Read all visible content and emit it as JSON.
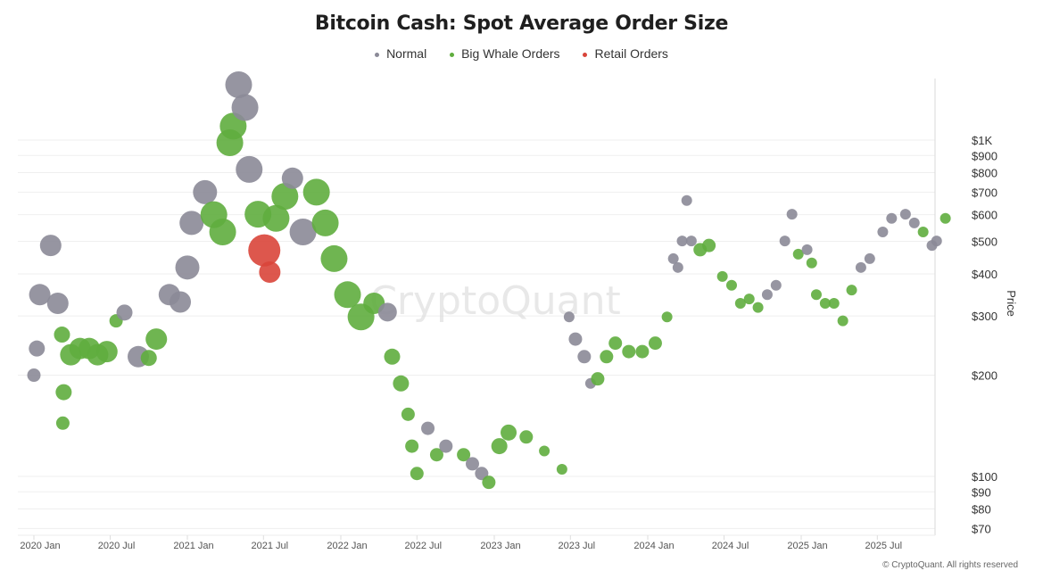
{
  "chart_data": {
    "type": "scatter",
    "title": "Bitcoin Cash: Spot Average Order Size",
    "legend_position": "top",
    "legend": [
      {
        "key": "normal",
        "label": "Normal",
        "color": "#8b8a97"
      },
      {
        "key": "whale",
        "label": "Big Whale Orders",
        "color": "#5fad3e"
      },
      {
        "key": "retail",
        "label": "Retail Orders",
        "color": "#d9453a"
      }
    ],
    "xlabel": "",
    "ylabel": "Price",
    "y_axis_side": "right",
    "y_scale": "log",
    "ylim": [
      70,
      1550
    ],
    "xlim": [
      "2019-12-20",
      "2025-12-31"
    ],
    "grid": "horizontal",
    "x_ticks": [
      {
        "date": "2020-01-01",
        "label": "2020 Jan"
      },
      {
        "date": "2020-07-01",
        "label": "2020 Jul"
      },
      {
        "date": "2021-01-01",
        "label": "2021 Jan"
      },
      {
        "date": "2021-07-01",
        "label": "2021 Jul"
      },
      {
        "date": "2022-01-01",
        "label": "2022 Jan"
      },
      {
        "date": "2022-07-01",
        "label": "2022 Jul"
      },
      {
        "date": "2023-01-01",
        "label": "2023 Jan"
      },
      {
        "date": "2023-07-01",
        "label": "2023 Jul"
      },
      {
        "date": "2024-01-01",
        "label": "2024 Jan"
      },
      {
        "date": "2024-07-01",
        "label": "2024 Jul"
      },
      {
        "date": "2025-01-01",
        "label": "2025 Jan"
      },
      {
        "date": "2025-07-01",
        "label": "2025 Jul"
      }
    ],
    "y_ticks": [
      {
        "value": 1000,
        "label": "$1K"
      },
      {
        "value": 900,
        "label": "$900"
      },
      {
        "value": 800,
        "label": "$800"
      },
      {
        "value": 700,
        "label": "$700"
      },
      {
        "value": 600,
        "label": "$600"
      },
      {
        "value": 500,
        "label": "$500"
      },
      {
        "value": 400,
        "label": "$400"
      },
      {
        "value": 300,
        "label": "$300"
      },
      {
        "value": 200,
        "label": "$200"
      },
      {
        "value": 100,
        "label": "$100"
      },
      {
        "value": 90,
        "label": "$90"
      },
      {
        "value": 80,
        "label": "$80"
      },
      {
        "value": 70,
        "label": "$70"
      }
    ],
    "points": [
      [
        "2020-01-01",
        200,
        "normal",
        2.5
      ],
      [
        "2020-01-08",
        240,
        "normal",
        3
      ],
      [
        "2020-01-15",
        347,
        "normal",
        4
      ],
      [
        "2020-02-10",
        486,
        "normal",
        4
      ],
      [
        "2020-02-27",
        327,
        "normal",
        4
      ],
      [
        "2020-03-08",
        264,
        "whale",
        3
      ],
      [
        "2020-03-12",
        178,
        "whale",
        3
      ],
      [
        "2020-03-10",
        144,
        "whale",
        2.5
      ],
      [
        "2020-03-29",
        230,
        "whale",
        4
      ],
      [
        "2020-04-20",
        240,
        "whale",
        4
      ],
      [
        "2020-05-12",
        240,
        "whale",
        4
      ],
      [
        "2020-06-01",
        230,
        "whale",
        4
      ],
      [
        "2020-06-23",
        235,
        "whale",
        4
      ],
      [
        "2020-07-15",
        290,
        "whale",
        2.5
      ],
      [
        "2020-08-04",
        307,
        "normal",
        3
      ],
      [
        "2020-09-06",
        227,
        "normal",
        4
      ],
      [
        "2020-10-01",
        225,
        "whale",
        3
      ],
      [
        "2020-10-19",
        256,
        "whale",
        4
      ],
      [
        "2020-11-19",
        347,
        "normal",
        4
      ],
      [
        "2020-12-15",
        330,
        "normal",
        4
      ],
      [
        "2021-01-01",
        418,
        "normal",
        4.5
      ],
      [
        "2021-01-11",
        567,
        "normal",
        4.5
      ],
      [
        "2021-02-12",
        700,
        "normal",
        4.5
      ],
      [
        "2021-03-05",
        600,
        "whale",
        5
      ],
      [
        "2021-03-26",
        533,
        "whale",
        5
      ],
      [
        "2021-04-12",
        982,
        "whale",
        5
      ],
      [
        "2021-04-20",
        1100,
        "whale",
        5
      ],
      [
        "2021-05-03",
        1460,
        "normal",
        5
      ],
      [
        "2021-05-18",
        1250,
        "normal",
        5
      ],
      [
        "2021-05-28",
        818,
        "normal",
        5
      ],
      [
        "2021-06-18",
        602,
        "whale",
        5
      ],
      [
        "2021-07-03",
        470,
        "retail",
        6
      ],
      [
        "2021-07-16",
        405,
        "retail",
        4
      ],
      [
        "2021-07-31",
        585,
        "whale",
        5
      ],
      [
        "2021-08-21",
        680,
        "whale",
        5
      ],
      [
        "2021-09-08",
        770,
        "normal",
        4
      ],
      [
        "2021-10-03",
        533,
        "normal",
        5
      ],
      [
        "2021-11-04",
        700,
        "whale",
        5
      ],
      [
        "2021-11-25",
        567,
        "whale",
        5
      ],
      [
        "2021-12-16",
        444,
        "whale",
        5
      ],
      [
        "2022-01-17",
        347,
        "whale",
        5
      ],
      [
        "2022-02-18",
        298,
        "whale",
        5
      ],
      [
        "2022-03-21",
        327,
        "whale",
        4
      ],
      [
        "2022-04-22",
        308,
        "normal",
        3.5
      ],
      [
        "2022-05-03",
        227,
        "whale",
        3
      ],
      [
        "2022-05-24",
        189,
        "whale",
        3
      ],
      [
        "2022-06-10",
        153,
        "whale",
        2.5
      ],
      [
        "2022-06-19",
        123,
        "whale",
        2.5
      ],
      [
        "2022-07-01",
        102,
        "whale",
        2.5
      ],
      [
        "2022-07-27",
        139,
        "normal",
        2.5
      ],
      [
        "2022-08-17",
        116,
        "whale",
        2.5
      ],
      [
        "2022-09-08",
        123,
        "normal",
        2.5
      ],
      [
        "2022-10-20",
        116,
        "whale",
        2.5
      ],
      [
        "2022-11-10",
        109,
        "normal",
        2.5
      ],
      [
        "2022-12-02",
        102,
        "normal",
        2.5
      ],
      [
        "2022-12-19",
        96,
        "whale",
        2.5
      ],
      [
        "2023-01-13",
        123,
        "whale",
        3
      ],
      [
        "2023-02-04",
        135,
        "whale",
        3
      ],
      [
        "2023-03-18",
        131,
        "whale",
        2.5
      ],
      [
        "2023-04-30",
        119,
        "whale",
        2
      ],
      [
        "2023-06-11",
        105,
        "whale",
        2
      ],
      [
        "2023-06-28",
        298,
        "normal",
        2
      ],
      [
        "2023-07-13",
        256,
        "normal",
        2.5
      ],
      [
        "2023-08-03",
        227,
        "normal",
        2.5
      ],
      [
        "2023-08-18",
        189,
        "normal",
        2
      ],
      [
        "2023-09-04",
        195,
        "whale",
        2.5
      ],
      [
        "2023-09-25",
        227,
        "whale",
        2.5
      ],
      [
        "2023-10-16",
        249,
        "whale",
        2.5
      ],
      [
        "2023-11-17",
        235,
        "whale",
        2.5
      ],
      [
        "2023-12-19",
        235,
        "whale",
        2.5
      ],
      [
        "2024-01-19",
        249,
        "whale",
        2.5
      ],
      [
        "2024-02-16",
        298,
        "whale",
        2
      ],
      [
        "2024-03-02",
        444,
        "normal",
        2
      ],
      [
        "2024-03-13",
        418,
        "normal",
        2
      ],
      [
        "2024-03-23",
        501,
        "normal",
        2
      ],
      [
        "2024-04-03",
        661,
        "normal",
        2
      ],
      [
        "2024-04-14",
        501,
        "normal",
        2
      ],
      [
        "2024-05-05",
        472,
        "whale",
        2.5
      ],
      [
        "2024-05-26",
        486,
        "whale",
        2.5
      ],
      [
        "2024-06-27",
        393,
        "whale",
        2
      ],
      [
        "2024-07-19",
        370,
        "whale",
        2
      ],
      [
        "2024-08-09",
        327,
        "whale",
        2
      ],
      [
        "2024-08-30",
        337,
        "whale",
        2
      ],
      [
        "2024-09-20",
        318,
        "whale",
        2
      ],
      [
        "2024-10-12",
        347,
        "normal",
        2
      ],
      [
        "2024-11-02",
        370,
        "normal",
        2
      ],
      [
        "2024-11-23",
        501,
        "normal",
        2
      ],
      [
        "2024-12-10",
        602,
        "normal",
        2
      ],
      [
        "2024-12-25",
        458,
        "whale",
        2
      ],
      [
        "2025-01-15",
        472,
        "normal",
        2
      ],
      [
        "2025-01-26",
        431,
        "whale",
        2
      ],
      [
        "2025-02-06",
        347,
        "whale",
        2
      ],
      [
        "2025-02-27",
        327,
        "whale",
        2
      ],
      [
        "2025-03-20",
        327,
        "whale",
        2
      ],
      [
        "2025-04-10",
        290,
        "whale",
        2
      ],
      [
        "2025-05-01",
        358,
        "whale",
        2
      ],
      [
        "2025-05-23",
        418,
        "normal",
        2
      ],
      [
        "2025-06-13",
        444,
        "normal",
        2
      ],
      [
        "2025-07-14",
        533,
        "normal",
        2
      ],
      [
        "2025-08-04",
        585,
        "normal",
        2
      ],
      [
        "2025-09-06",
        602,
        "normal",
        2
      ],
      [
        "2025-09-27",
        567,
        "normal",
        2
      ],
      [
        "2025-10-18",
        533,
        "whale",
        2
      ],
      [
        "2025-11-08",
        486,
        "normal",
        2
      ],
      [
        "2025-11-19",
        501,
        "normal",
        2
      ],
      [
        "2025-12-10",
        585,
        "whale",
        2
      ]
    ]
  },
  "watermark": "CryptoQuant",
  "copyright": "© CryptoQuant. All rights reserved"
}
